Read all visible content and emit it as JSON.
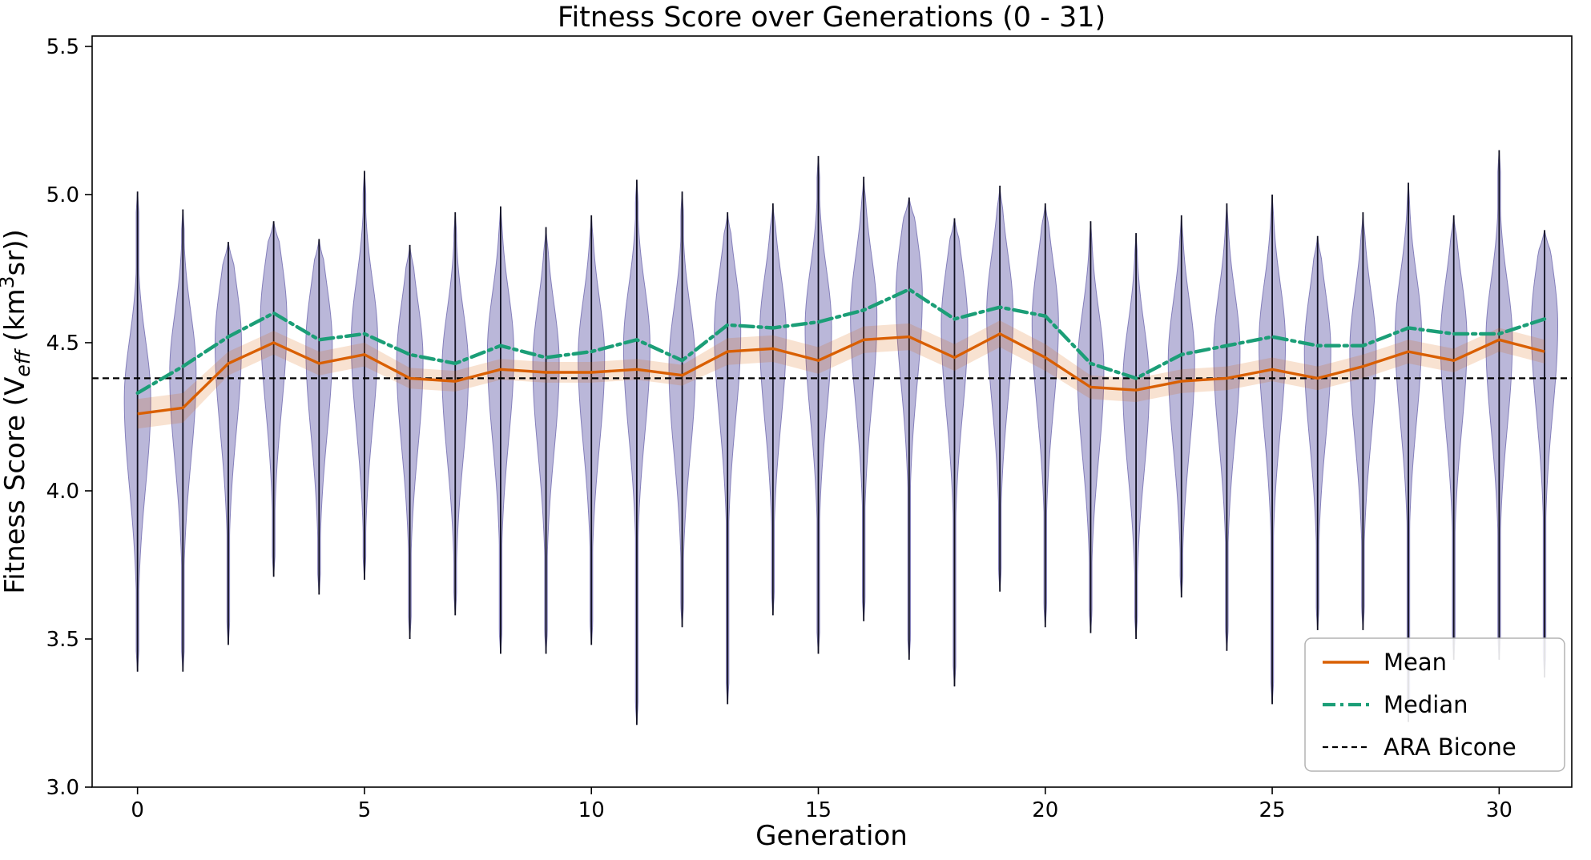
{
  "title": "Fitness Score over Generations (0 - 31)",
  "axes": {
    "xlabel": "Generation",
    "ylabel_prefix": "Fitness Score (V",
    "ylabel_sub": "eff",
    "ylabel_mid": " (km",
    "ylabel_sup": "3",
    "ylabel_suffix": "sr))"
  },
  "legend": {
    "items": [
      {
        "label": "Mean",
        "style": "solid",
        "color": "#d95f02"
      },
      {
        "label": "Median",
        "style": "dashdot",
        "color": "#1b9e77"
      },
      {
        "label": "ARA Bicone",
        "style": "dashed",
        "color": "#000000"
      }
    ]
  },
  "chart_data": {
    "type": "violin",
    "title": "Fitness Score over Generations (0 - 31)",
    "xlabel": "Generation",
    "ylabel": "Fitness Score (V_eff (km^3 sr))",
    "x": [
      0,
      1,
      2,
      3,
      4,
      5,
      6,
      7,
      8,
      9,
      10,
      11,
      12,
      13,
      14,
      15,
      16,
      17,
      18,
      19,
      20,
      21,
      22,
      23,
      24,
      25,
      26,
      27,
      28,
      29,
      30,
      31
    ],
    "violin_max": [
      5.01,
      4.95,
      4.84,
      4.91,
      4.85,
      5.08,
      4.83,
      4.94,
      4.96,
      4.89,
      4.93,
      5.05,
      5.01,
      4.94,
      4.97,
      5.13,
      5.06,
      4.99,
      4.92,
      5.03,
      4.97,
      4.91,
      4.87,
      4.93,
      4.97,
      5.0,
      4.86,
      4.94,
      5.04,
      4.93,
      5.15,
      4.88
    ],
    "violin_min": [
      3.39,
      3.39,
      3.48,
      3.71,
      3.65,
      3.7,
      3.5,
      3.58,
      3.45,
      3.45,
      3.48,
      3.21,
      3.54,
      3.28,
      3.58,
      3.45,
      3.56,
      3.43,
      3.34,
      3.66,
      3.54,
      3.52,
      3.5,
      3.64,
      3.46,
      3.28,
      3.53,
      3.53,
      3.22,
      3.43,
      3.43,
      3.37
    ],
    "series": [
      {
        "name": "Mean",
        "values": [
          4.26,
          4.28,
          4.43,
          4.5,
          4.43,
          4.46,
          4.38,
          4.37,
          4.41,
          4.4,
          4.4,
          4.41,
          4.39,
          4.47,
          4.48,
          4.44,
          4.51,
          4.52,
          4.45,
          4.53,
          4.45,
          4.35,
          4.34,
          4.37,
          4.38,
          4.41,
          4.38,
          4.42,
          4.47,
          4.44,
          4.51,
          4.47
        ]
      },
      {
        "name": "Median",
        "values": [
          4.33,
          4.42,
          4.52,
          4.6,
          4.51,
          4.53,
          4.46,
          4.43,
          4.49,
          4.45,
          4.47,
          4.51,
          4.44,
          4.56,
          4.55,
          4.57,
          4.61,
          4.68,
          4.58,
          4.62,
          4.59,
          4.43,
          4.38,
          4.46,
          4.49,
          4.52,
          4.49,
          4.49,
          4.55,
          4.53,
          4.53,
          4.58
        ]
      }
    ],
    "mean_band_halfwidth": [
      0.05,
      0.05,
      0.04,
      0.04,
      0.04,
      0.04,
      0.035,
      0.035,
      0.035,
      0.035,
      0.035,
      0.035,
      0.035,
      0.045,
      0.045,
      0.045,
      0.045,
      0.045,
      0.045,
      0.045,
      0.045,
      0.04,
      0.04,
      0.04,
      0.04,
      0.04,
      0.04,
      0.04,
      0.04,
      0.04,
      0.04,
      0.04
    ],
    "reference_line": {
      "label": "ARA Bicone",
      "value": 4.38
    },
    "x_ticks": [
      "0",
      "5",
      "10",
      "15",
      "20",
      "25",
      "30"
    ],
    "y_ticks": [
      "3.0",
      "3.5",
      "4.0",
      "4.5",
      "5.0",
      "5.5"
    ],
    "xlim": [
      -1.0,
      31.6
    ],
    "ylim": [
      3.0,
      5.535
    ],
    "grid": false,
    "legend_position": "lower right",
    "colors": {
      "violin_fill": "#7570b3",
      "violin_edge": "#7570b3",
      "violin_center_line": "#101020",
      "mean": "#d95f02",
      "mean_band": "#d95f02",
      "median": "#1b9e77",
      "reference": "#000000"
    }
  }
}
